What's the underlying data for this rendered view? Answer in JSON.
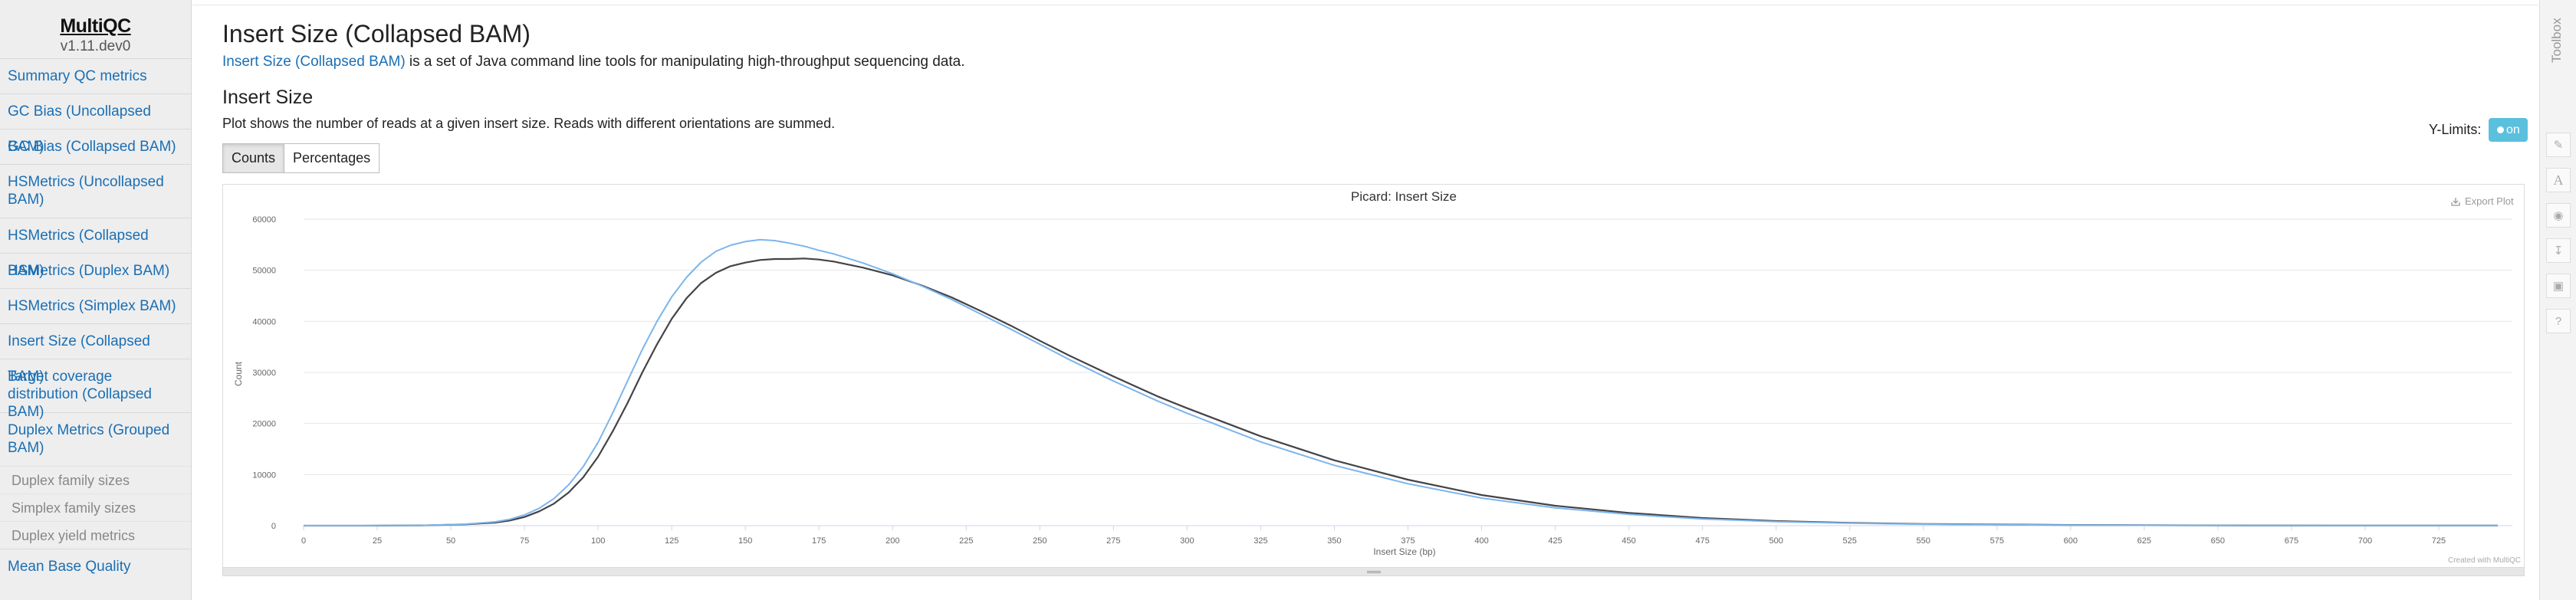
{
  "sidebar": {
    "logo_name": "MultiQC",
    "version": "v1.11.dev0",
    "items": [
      {
        "label": "Summary QC metrics"
      },
      {
        "label": "GC Bias (Uncollapsed BAM)"
      },
      {
        "label": "GC Bias (Collapsed BAM)"
      },
      {
        "label": "HSMetrics (Uncollapsed BAM)"
      },
      {
        "label": "HSMetrics (Collapsed BAM)"
      },
      {
        "label": "HSMetrics (Duplex BAM)"
      },
      {
        "label": "HSMetrics (Simplex BAM)"
      },
      {
        "label": "Insert Size (Collapsed BAM)"
      },
      {
        "label": "Target coverage distribution (Collapsed BAM)"
      },
      {
        "label": "Duplex Metrics (Grouped BAM)"
      },
      {
        "label": "Duplex family sizes"
      },
      {
        "label": "Simplex family sizes"
      },
      {
        "label": "Duplex yield metrics"
      },
      {
        "label": "Mean Base Quality"
      }
    ]
  },
  "main": {
    "title": "Insert Size (Collapsed BAM)",
    "intro_link": "Insert Size (Collapsed BAM)",
    "intro_text": " is a set of Java command line tools for manipulating high-throughput sequencing data.",
    "section_title": "Insert Size",
    "section_desc": "Plot shows the number of reads at a given insert size. Reads with different orientations are summed.",
    "buttons": {
      "counts": "Counts",
      "percentages": "Percentages"
    },
    "ylimits_label": "Y-Limits:",
    "ylimits_toggle": "on",
    "export_label": "Export Plot",
    "credit": "Created with MultiQC"
  },
  "toolbox": {
    "label": "Toolbox"
  },
  "colors": {
    "series_light": "#7cb5ec",
    "series_dark": "#434348",
    "link": "#1a6fb5",
    "toggle": "#5bc0de"
  },
  "chart_data": {
    "type": "line",
    "title": "Picard: Insert Size",
    "xlabel": "Insert Size (bp)",
    "ylabel": "Count",
    "xlim": [
      0,
      750
    ],
    "ylim": [
      0,
      60000
    ],
    "xticks": [
      0,
      25,
      50,
      75,
      100,
      125,
      150,
      175,
      200,
      225,
      250,
      275,
      300,
      325,
      350,
      375,
      400,
      425,
      450,
      475,
      500,
      525,
      550,
      575,
      600,
      625,
      650,
      675,
      700,
      725
    ],
    "yticks": [
      0,
      10000,
      20000,
      30000,
      40000,
      50000,
      60000
    ],
    "x": [
      0,
      20,
      40,
      55,
      65,
      70,
      75,
      80,
      85,
      90,
      95,
      100,
      105,
      110,
      115,
      120,
      125,
      130,
      135,
      140,
      145,
      150,
      155,
      160,
      165,
      170,
      175,
      180,
      190,
      200,
      210,
      220,
      230,
      240,
      250,
      260,
      275,
      290,
      300,
      325,
      350,
      375,
      400,
      425,
      450,
      475,
      500,
      525,
      550,
      600,
      650,
      700,
      745
    ],
    "series": [
      {
        "values": [
          0,
          0,
          50,
          250,
          600,
          1000,
          1700,
          2800,
          4300,
          6500,
          9500,
          13500,
          18500,
          24000,
          30000,
          35500,
          40500,
          44500,
          47500,
          49500,
          50800,
          51500,
          52000,
          52200,
          52200,
          52300,
          52100,
          51700,
          50500,
          49000,
          47000,
          44700,
          42000,
          39200,
          36200,
          33300,
          29200,
          25300,
          23000,
          17500,
          12800,
          9000,
          6000,
          3900,
          2500,
          1500,
          900,
          550,
          330,
          130,
          50,
          20,
          10
        ]
      },
      {
        "values": [
          0,
          0,
          60,
          300,
          750,
          1250,
          2100,
          3400,
          5300,
          8000,
          11600,
          16300,
          22100,
          28300,
          34500,
          40000,
          44800,
          48600,
          51600,
          53700,
          54900,
          55600,
          56000,
          55800,
          55300,
          54700,
          53900,
          53200,
          51400,
          49300,
          46900,
          44300,
          41400,
          38500,
          35500,
          32500,
          28300,
          24400,
          22000,
          16400,
          11800,
          8200,
          5400,
          3500,
          2200,
          1300,
          800,
          480,
          280,
          110,
          40,
          15,
          8
        ]
      }
    ]
  }
}
